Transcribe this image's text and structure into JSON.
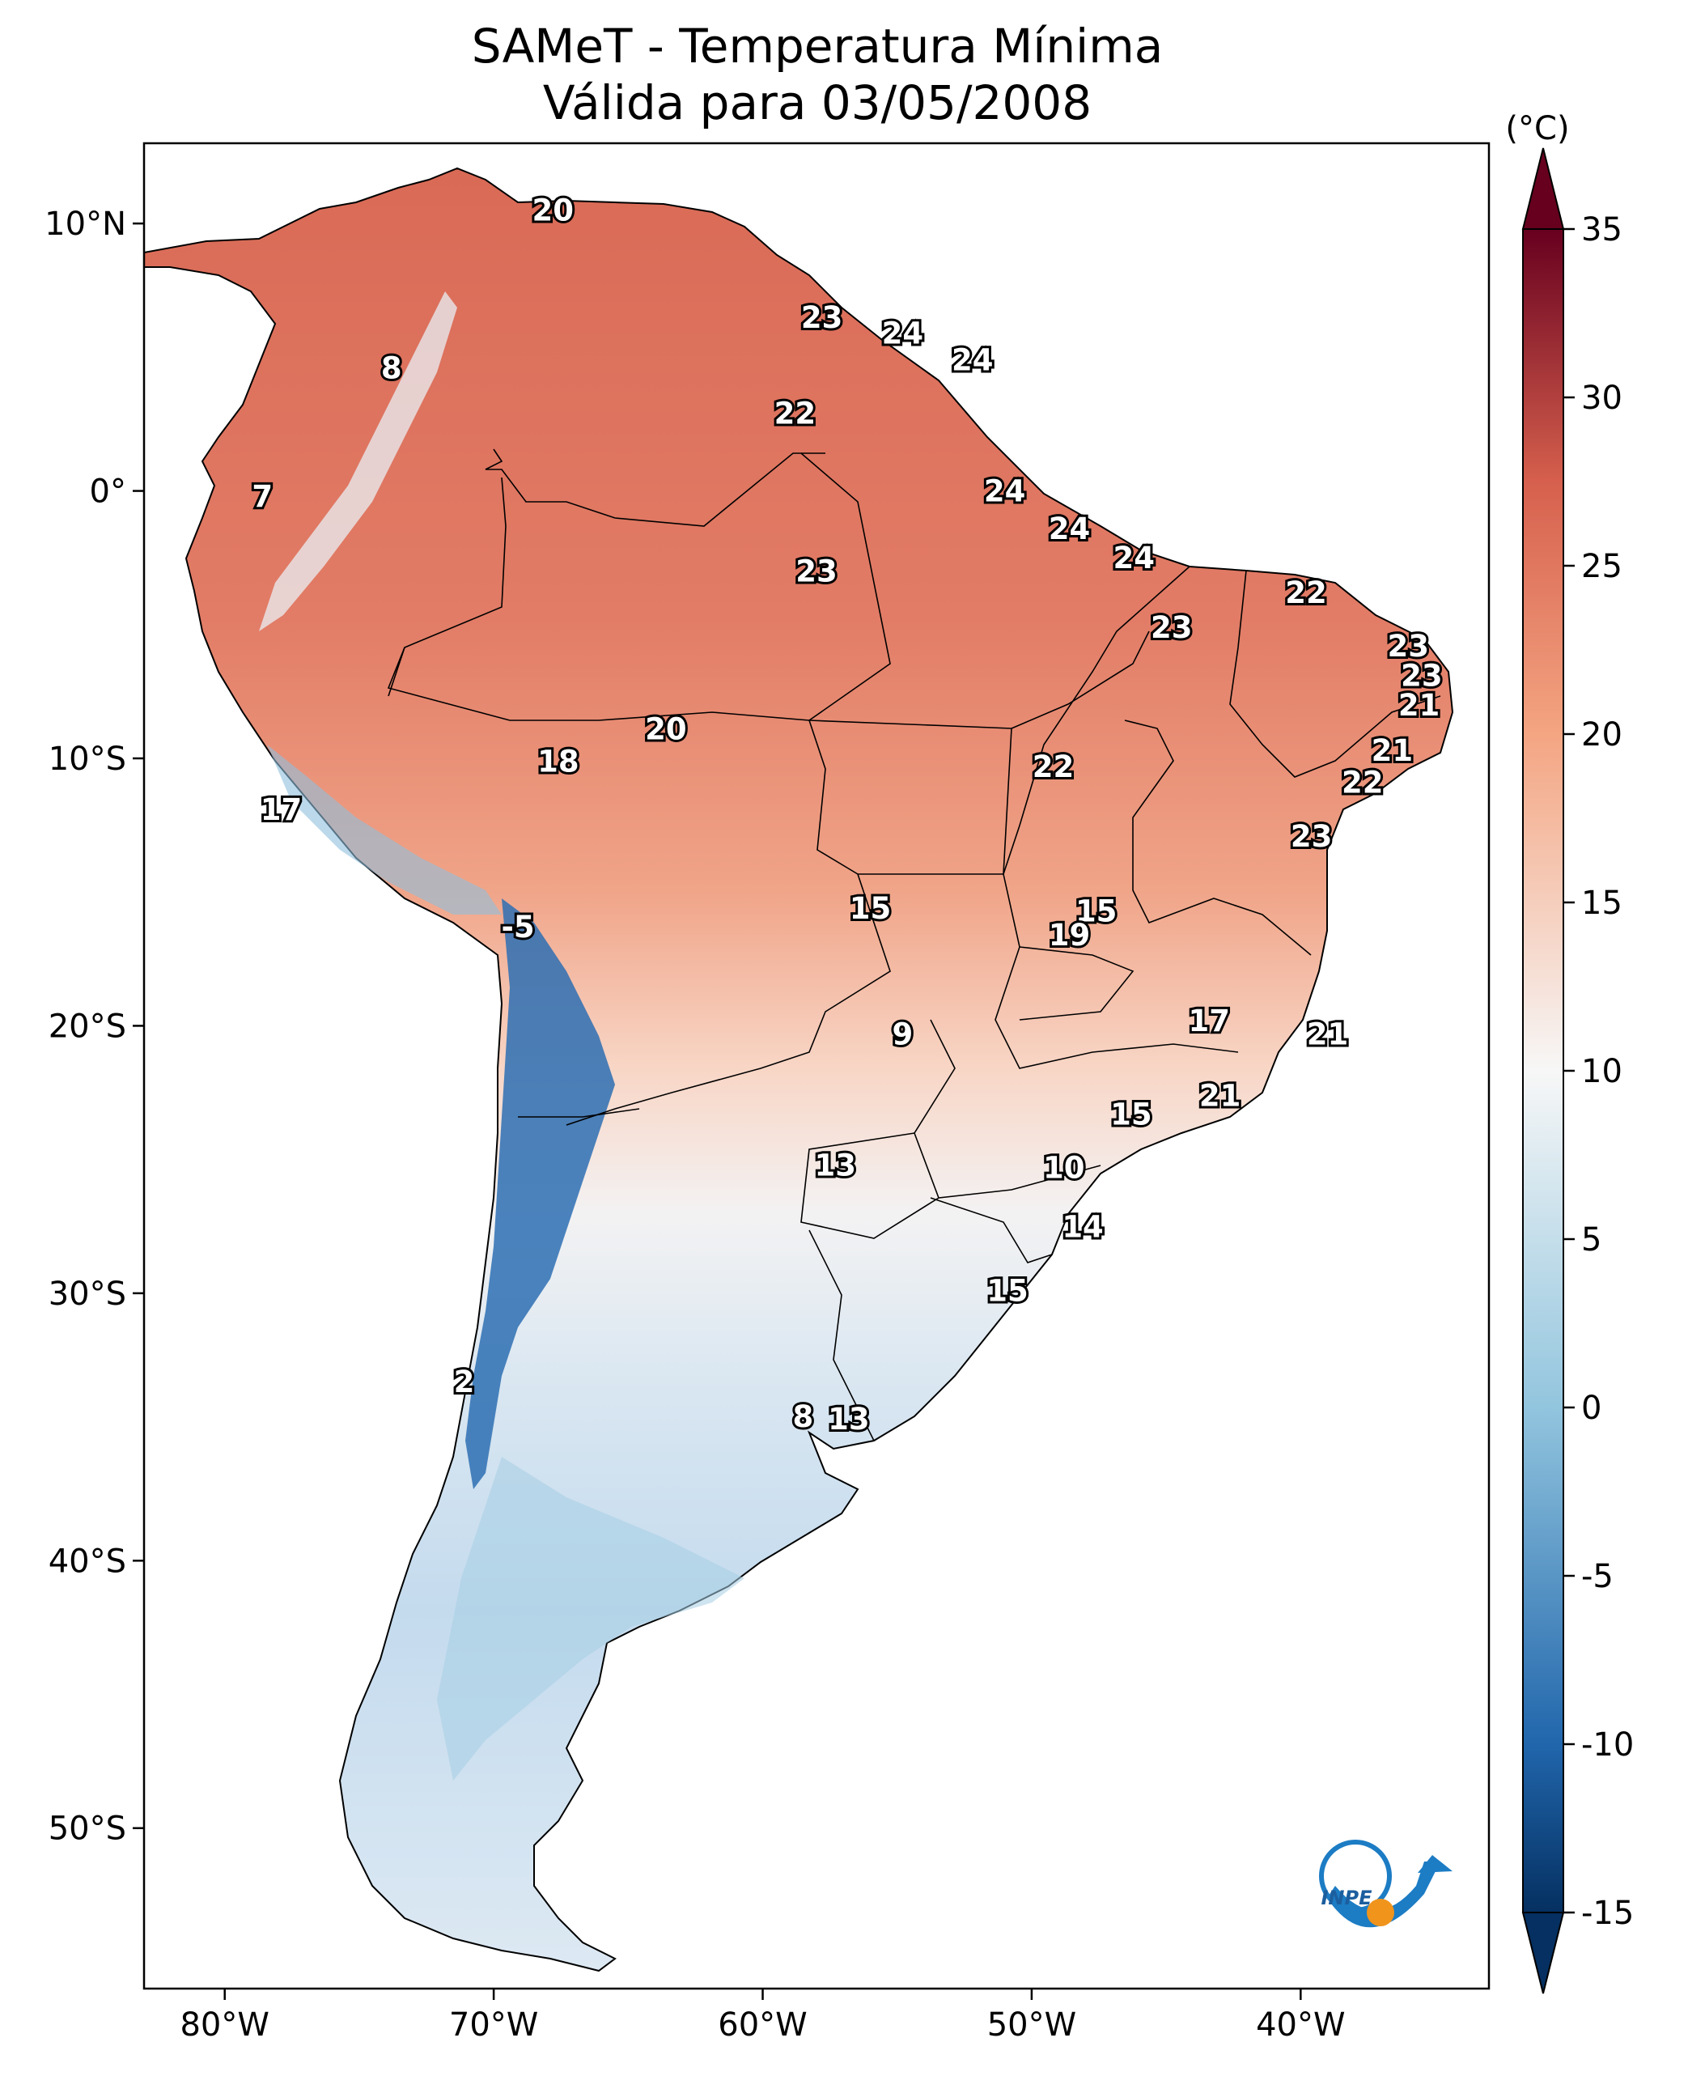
{
  "title": {
    "line1": "SAMeT - Temperatura Mínima",
    "line2": "Válida para 03/05/2008"
  },
  "map": {
    "lon_range": [
      -83,
      -33
    ],
    "lat_range": [
      -56,
      13
    ],
    "lon_ticks": [
      {
        "value": -80,
        "label": "80°W"
      },
      {
        "value": -70,
        "label": "70°W"
      },
      {
        "value": -60,
        "label": "60°W"
      },
      {
        "value": -50,
        "label": "50°W"
      },
      {
        "value": -40,
        "label": "40°W"
      }
    ],
    "lat_ticks": [
      {
        "value": 10,
        "label": "10°N"
      },
      {
        "value": 0,
        "label": "0°"
      },
      {
        "value": -10,
        "label": "10°S"
      },
      {
        "value": -20,
        "label": "20°S"
      },
      {
        "value": -30,
        "label": "30°S"
      },
      {
        "value": -40,
        "label": "40°S"
      },
      {
        "value": -50,
        "label": "50°S"
      }
    ],
    "contour_labels": [
      {
        "lon": -67.8,
        "lat": 10.5,
        "text": "20"
      },
      {
        "lon": -57.8,
        "lat": 6.5,
        "text": "23"
      },
      {
        "lon": -54.8,
        "lat": 5.9,
        "text": "24"
      },
      {
        "lon": -52.2,
        "lat": 4.9,
        "text": "24"
      },
      {
        "lon": -73.8,
        "lat": 4.6,
        "text": "8"
      },
      {
        "lon": -58.8,
        "lat": 2.9,
        "text": "22"
      },
      {
        "lon": -78.6,
        "lat": -0.2,
        "text": "7"
      },
      {
        "lon": -51.0,
        "lat": 0.0,
        "text": "24"
      },
      {
        "lon": -48.6,
        "lat": -1.4,
        "text": "24"
      },
      {
        "lon": -46.2,
        "lat": -2.5,
        "text": "24"
      },
      {
        "lon": -58.0,
        "lat": -3.0,
        "text": "23"
      },
      {
        "lon": -39.8,
        "lat": -3.8,
        "text": "22"
      },
      {
        "lon": -44.8,
        "lat": -5.1,
        "text": "23"
      },
      {
        "lon": -36.0,
        "lat": -5.8,
        "text": "23"
      },
      {
        "lon": -35.5,
        "lat": -6.9,
        "text": "23"
      },
      {
        "lon": -35.6,
        "lat": -8.0,
        "text": "21"
      },
      {
        "lon": -63.6,
        "lat": -8.9,
        "text": "20"
      },
      {
        "lon": -36.6,
        "lat": -9.7,
        "text": "21"
      },
      {
        "lon": -67.6,
        "lat": -10.1,
        "text": "18"
      },
      {
        "lon": -49.2,
        "lat": -10.3,
        "text": "22"
      },
      {
        "lon": -37.7,
        "lat": -10.9,
        "text": "22"
      },
      {
        "lon": -77.9,
        "lat": -11.9,
        "text": "17"
      },
      {
        "lon": -39.6,
        "lat": -12.9,
        "text": "23"
      },
      {
        "lon": -56.0,
        "lat": -15.6,
        "text": "15"
      },
      {
        "lon": -47.6,
        "lat": -15.7,
        "text": "15"
      },
      {
        "lon": -48.6,
        "lat": -16.6,
        "text": "19"
      },
      {
        "lon": -69.1,
        "lat": -16.3,
        "text": "-5"
      },
      {
        "lon": -43.4,
        "lat": -19.8,
        "text": "17"
      },
      {
        "lon": -54.8,
        "lat": -20.3,
        "text": "9"
      },
      {
        "lon": -39.0,
        "lat": -20.3,
        "text": "21"
      },
      {
        "lon": -43.0,
        "lat": -22.6,
        "text": "21"
      },
      {
        "lon": -46.3,
        "lat": -23.3,
        "text": "15"
      },
      {
        "lon": -57.3,
        "lat": -25.2,
        "text": "13"
      },
      {
        "lon": -48.8,
        "lat": -25.3,
        "text": "10"
      },
      {
        "lon": -48.1,
        "lat": -27.5,
        "text": "14"
      },
      {
        "lon": -50.9,
        "lat": -29.9,
        "text": "15"
      },
      {
        "lon": -71.1,
        "lat": -33.3,
        "text": "2"
      },
      {
        "lon": -58.5,
        "lat": -34.6,
        "text": "8"
      },
      {
        "lon": -56.8,
        "lat": -34.7,
        "text": "13"
      }
    ]
  },
  "colorbar": {
    "unit": "(°C)",
    "range": [
      -15,
      35
    ],
    "ticks": [
      {
        "value": 35,
        "label": "35"
      },
      {
        "value": 30,
        "label": "30"
      },
      {
        "value": 25,
        "label": "25"
      },
      {
        "value": 20,
        "label": "20"
      },
      {
        "value": 15,
        "label": "15"
      },
      {
        "value": 10,
        "label": "10"
      },
      {
        "value": 5,
        "label": "5"
      },
      {
        "value": 0,
        "label": "0"
      },
      {
        "value": -5,
        "label": "-5"
      },
      {
        "value": -10,
        "label": "-10"
      },
      {
        "value": -15,
        "label": "-15"
      }
    ],
    "colors": {
      "max_end": "#67001f",
      "warm": "#d6604d",
      "light_warm": "#f4a582",
      "neutral": "#f7f7f7",
      "light_cool": "#92c5de",
      "cool": "#2166ac",
      "min_end": "#053061"
    }
  },
  "logo": {
    "text": "INPE",
    "colors": {
      "blue": "#1c7cc4",
      "orange": "#f0941c"
    }
  }
}
